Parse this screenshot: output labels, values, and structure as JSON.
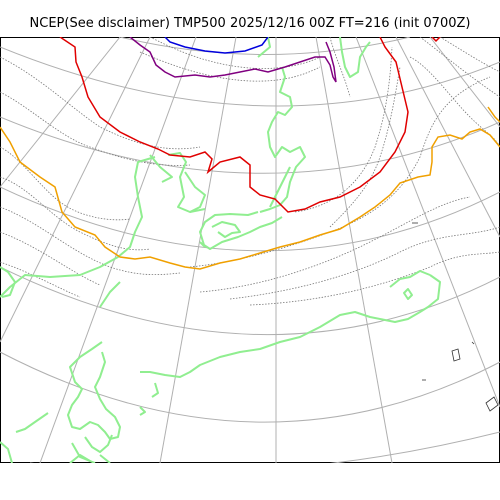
{
  "title": "NCEP(See disclaimer) TMP500 2025/12/16 00Z FT=216 (init 0700Z)",
  "colors": {
    "background": "#ffffff",
    "coastline": "#90ee90",
    "graticule": "#b0b0b0",
    "isotherm": "#777777",
    "contour_red": "#e00000",
    "contour_orange": "#f0a000",
    "contour_blue": "#0000dd",
    "contour_purple": "#800080"
  }
}
